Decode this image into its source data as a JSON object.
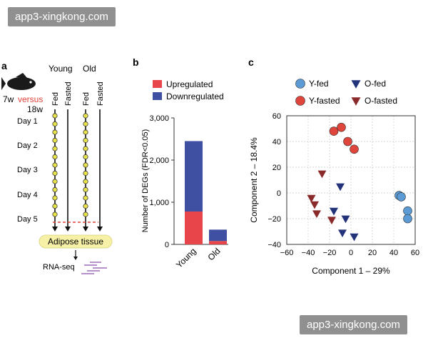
{
  "watermark": {
    "top": "app3-xingkong.com",
    "bottom": "app3-xingkong.com"
  },
  "panel_a": {
    "label": "a",
    "group_young": "Young",
    "group_old": "Old",
    "age_young": "7w",
    "versus": "versus",
    "age_old": "18w",
    "col_fed": "Fed",
    "col_fasted": "Fasted",
    "days": [
      "Day 1",
      "Day 2",
      "Day 3",
      "Day 4",
      "Day 5"
    ],
    "tissue": "Adipose tissue",
    "assay": "RNA-seq",
    "colors": {
      "dot": "#e8e34a",
      "versus": "#e0453b",
      "dashed": "#e0453b",
      "tissue_box": "#f6f1a6",
      "rnaseq": "#8a4ea6"
    }
  },
  "panel_b": {
    "label": "b"
  },
  "panel_c": {
    "label": "c"
  },
  "chart_data": [
    {
      "type": "bar",
      "stacked": true,
      "categories": [
        "Young",
        "Old"
      ],
      "series": [
        {
          "name": "Upregulated",
          "values": [
            780,
            80
          ],
          "color": "#e8454a"
        },
        {
          "name": "Downregulated",
          "values": [
            1670,
            270
          ],
          "color": "#3f4fa2"
        }
      ],
      "ylabel": "Number of DEGs (FDR<0.05)",
      "ylim": [
        0,
        3000
      ],
      "yticks": [
        "0",
        "1,000",
        "2,000",
        "3,000"
      ],
      "legend_position": "top"
    },
    {
      "type": "scatter",
      "xlabel": "Component 1 – 29%",
      "ylabel": "Component 2 – 18.4%",
      "xlim": [
        -60,
        60
      ],
      "ylim": [
        -40,
        60
      ],
      "xticks": [
        "−60",
        "−40",
        "−20",
        "0",
        "20",
        "40",
        "60"
      ],
      "yticks": [
        "−40",
        "−20",
        "0",
        "20",
        "40",
        "60"
      ],
      "grid": true,
      "legend_position": "top",
      "series": [
        {
          "name": "Y-fed",
          "marker": "circle",
          "color": "#5b9bd5",
          "points": [
            [
              45,
              -2
            ],
            [
              47,
              -3
            ],
            [
              53,
              -14
            ],
            [
              53,
              -20
            ]
          ]
        },
        {
          "name": "Y-fasted",
          "marker": "circle",
          "color": "#e0453b",
          "points": [
            [
              -16,
              48
            ],
            [
              -9,
              51
            ],
            [
              -3,
              40
            ],
            [
              3,
              34
            ]
          ]
        },
        {
          "name": "O-fed",
          "marker": "triangle-down",
          "color": "#22337a",
          "points": [
            [
              -10,
              5
            ],
            [
              -16,
              -14
            ],
            [
              -5,
              -20
            ],
            [
              -8,
              -31
            ],
            [
              3,
              -34
            ]
          ]
        },
        {
          "name": "O-fasted",
          "marker": "triangle-down",
          "color": "#8b2a2a",
          "points": [
            [
              -27,
              15
            ],
            [
              -37,
              -4
            ],
            [
              -34,
              -9
            ],
            [
              -32,
              -16
            ],
            [
              -18,
              -21
            ]
          ]
        }
      ]
    }
  ]
}
